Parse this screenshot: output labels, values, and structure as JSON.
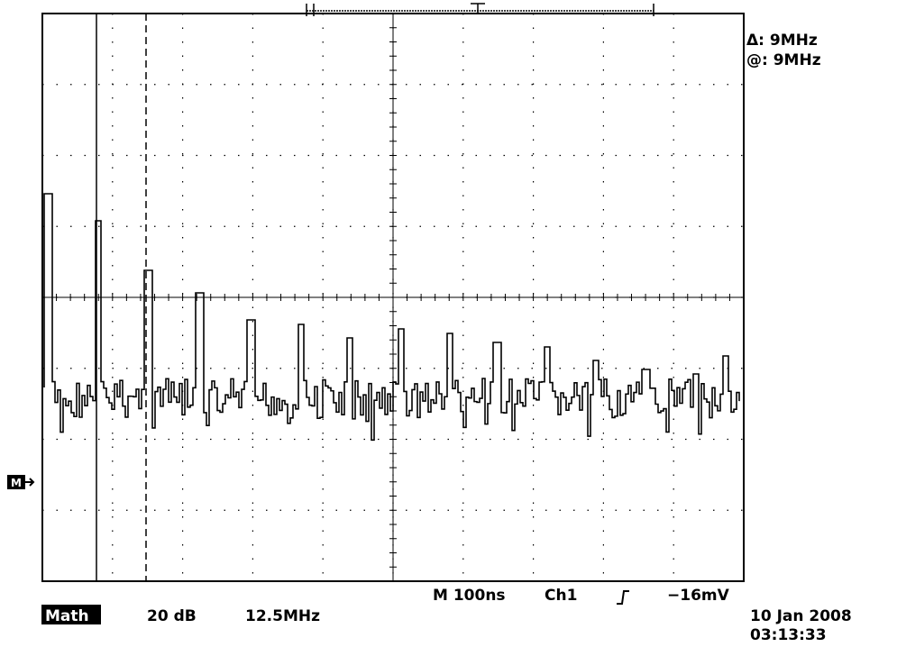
{
  "cursor_readout": {
    "delta": "Δ: 9MHz",
    "at": "@: 9MHz"
  },
  "ref_marker": "M",
  "status": {
    "timebase": "M 100ns",
    "source": "Ch1",
    "level": "−16mV"
  },
  "math": {
    "label": "Math",
    "scale": "20 dB",
    "span": "12.5MHz"
  },
  "timestamp": {
    "date": "10 Jan 2008",
    "time": "03:13:33"
  }
}
